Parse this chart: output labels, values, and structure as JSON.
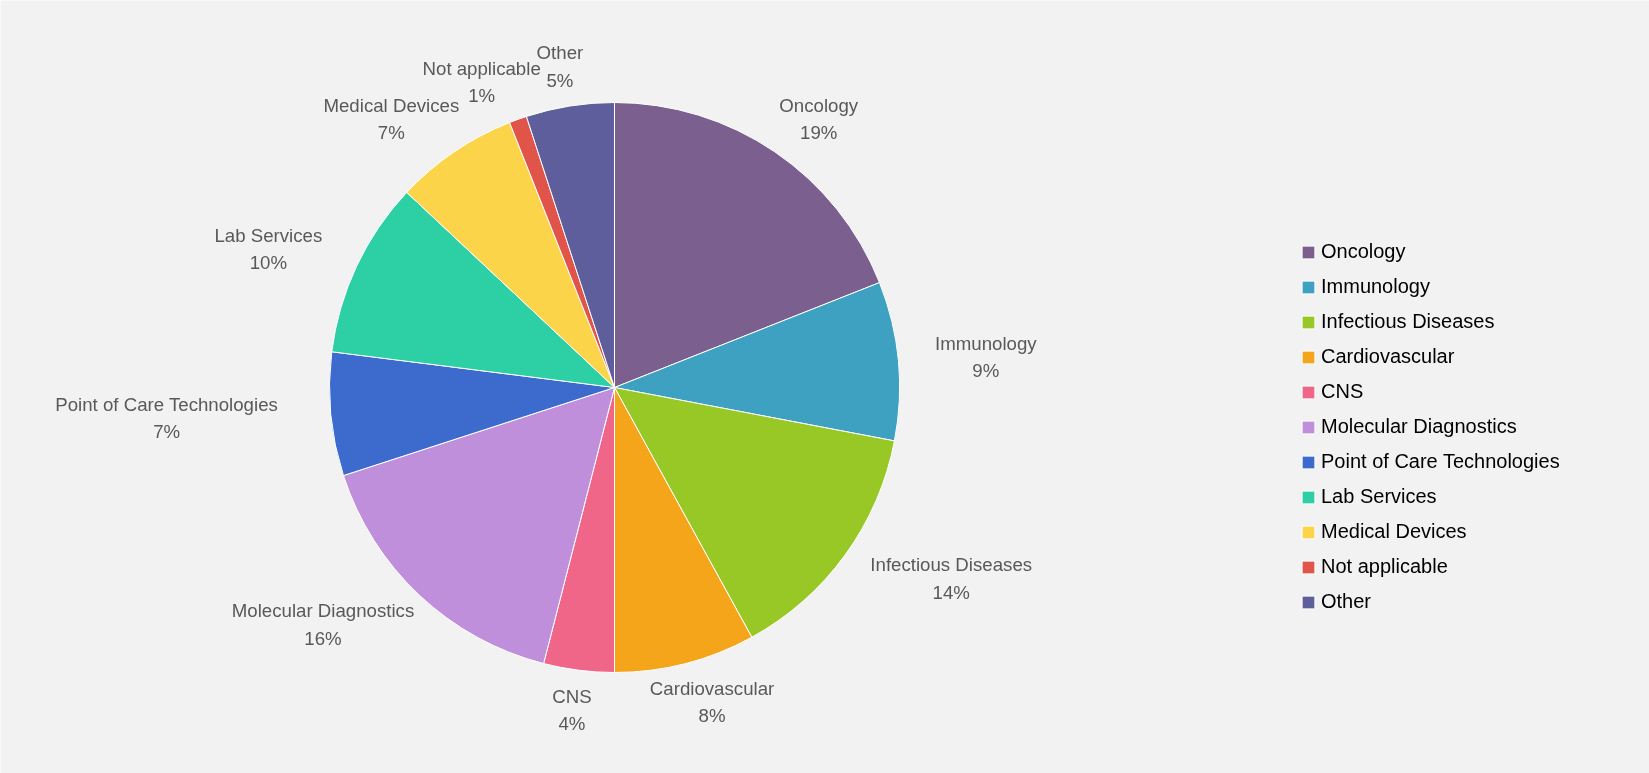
{
  "chart_data": {
    "type": "pie",
    "categories": [
      "Oncology",
      "Immunology",
      "Infectious Diseases",
      "Cardiovascular",
      "CNS",
      "Molecular Diagnostics",
      "Point of Care Technologies",
      "Lab Services",
      "Medical Devices",
      "Not applicable",
      "Other"
    ],
    "values": [
      19,
      9,
      14,
      8,
      4,
      16,
      7,
      10,
      7,
      1,
      5
    ],
    "value_labels": [
      "19%",
      "9%",
      "14%",
      "8%",
      "4%",
      "16%",
      "7%",
      "10%",
      "7%",
      "1%",
      "5%"
    ],
    "colors": [
      "#7b5f8e",
      "#3ea1c2",
      "#97c826",
      "#f4a51a",
      "#f06689",
      "#bf8fdb",
      "#3c6bcd",
      "#2dcfa5",
      "#fcd44a",
      "#e0544a",
      "#5e5e9c"
    ],
    "legend": "right"
  }
}
